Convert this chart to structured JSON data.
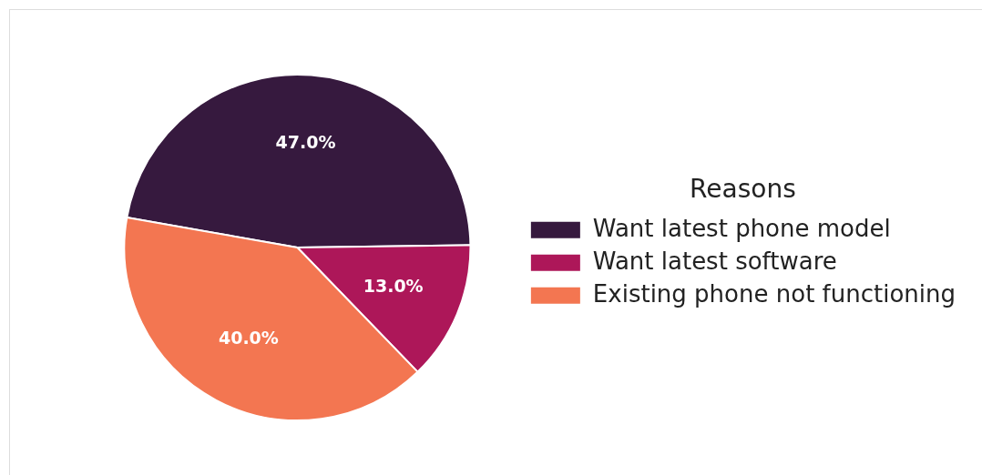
{
  "chart_data": {
    "type": "pie",
    "legend_title": "Reasons",
    "legend": "right",
    "categories": [
      "Want latest phone model",
      "Want latest software",
      "Existing phone not functioning"
    ],
    "values": [
      47.0,
      13.0,
      40.0
    ],
    "colors": [
      "#36193e",
      "#ad1759",
      "#f37651"
    ],
    "value_labels": [
      "47.0%",
      "13.0%",
      "40.0%"
    ]
  }
}
